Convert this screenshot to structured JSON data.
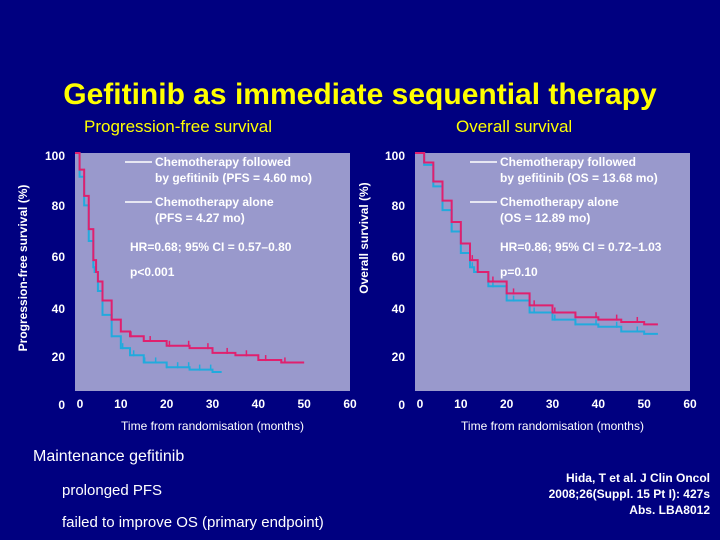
{
  "slide": {
    "title": "Gefitinib as immediate sequential therapy",
    "maintenance_heading": "Maintenance gefitinib",
    "bullets": [
      "prolonged PFS",
      "failed to improve OS (primary endpoint)"
    ],
    "citation": [
      "Hida, T et al. J Clin Oncol",
      "2008;26(Suppl. 15 Pt I): 427s",
      "Abs. LBA8012"
    ]
  },
  "colors": {
    "background": "#000080",
    "title": "#ffff00",
    "plot_area": "#9999cc",
    "gefitinib_line": "#e0206e",
    "chemo_line": "#22aadd"
  },
  "chart_data": [
    {
      "type": "line",
      "title": "Progression-free survival",
      "xlabel": "Time from randomisation (months)",
      "ylabel": "Progression-free survival (%)",
      "xlim": [
        0,
        60
      ],
      "ylim": [
        0,
        100
      ],
      "x_ticks": [
        "0",
        "10",
        "20",
        "30",
        "40",
        "50",
        "60"
      ],
      "y_ticks": [
        "0",
        "20",
        "40",
        "60",
        "80",
        "100"
      ],
      "legend": [
        "Chemotherapy followed",
        "by gefitinib (PFS = 4.60 mo)",
        "Chemotherapy alone",
        "(PFS = 4.27 mo)"
      ],
      "annotations": [
        "HR=0.68; 95% CI = 0.57–0.80",
        "p<0.001"
      ],
      "series": [
        {
          "name": "Chemotherapy followed by gefitinib (PFS = 4.60 mo)",
          "x": [
            0,
            1,
            2,
            3,
            4,
            4.6,
            5,
            6,
            8,
            10,
            12,
            15,
            20,
            25,
            30,
            35,
            40,
            45,
            50
          ],
          "y": [
            100,
            93,
            82,
            68,
            55,
            50,
            46,
            38,
            30,
            25,
            23,
            21,
            19,
            18,
            16,
            15,
            13,
            12,
            12
          ]
        },
        {
          "name": "Chemotherapy alone (PFS = 4.27 mo)",
          "x": [
            0,
            1,
            2,
            3,
            4,
            4.27,
            5,
            6,
            8,
            10,
            12,
            15,
            20,
            25,
            30,
            32
          ],
          "y": [
            100,
            90,
            78,
            63,
            52,
            50,
            42,
            32,
            23,
            18,
            15,
            12,
            10,
            9,
            8,
            8
          ]
        }
      ]
    },
    {
      "type": "line",
      "title": "Overall survival",
      "xlabel": "Time from randomisation (months)",
      "ylabel": "Overall survival (%)",
      "xlim": [
        0,
        60
      ],
      "ylim": [
        0,
        100
      ],
      "x_ticks": [
        "0",
        "10",
        "20",
        "30",
        "40",
        "50",
        "60"
      ],
      "y_ticks": [
        "0",
        "20",
        "40",
        "60",
        "80",
        "100"
      ],
      "legend": [
        "Chemotherapy followed",
        "by gefitinib (OS = 13.68 mo)",
        "Chemotherapy alone",
        "(OS = 12.89 mo)"
      ],
      "annotations": [
        "HR=0.86; 95% CI = 0.72–1.03",
        "p=0.10"
      ],
      "series": [
        {
          "name": "Chemotherapy followed by gefitinib (OS = 13.68 mo)",
          "x": [
            0,
            2,
            4,
            6,
            8,
            10,
            12,
            13.68,
            16,
            20,
            25,
            30,
            35,
            40,
            45,
            50,
            53
          ],
          "y": [
            100,
            96,
            88,
            80,
            71,
            62,
            55,
            50,
            46,
            41,
            36,
            33,
            31,
            30,
            29,
            28,
            28
          ]
        },
        {
          "name": "Chemotherapy alone (OS = 12.89 mo)",
          "x": [
            0,
            2,
            4,
            6,
            8,
            10,
            12,
            12.89,
            16,
            20,
            25,
            30,
            35,
            40,
            45,
            50,
            53
          ],
          "y": [
            100,
            95,
            86,
            76,
            67,
            58,
            52,
            50,
            44,
            38,
            33,
            30,
            28,
            27,
            25,
            24,
            24
          ]
        }
      ]
    }
  ]
}
